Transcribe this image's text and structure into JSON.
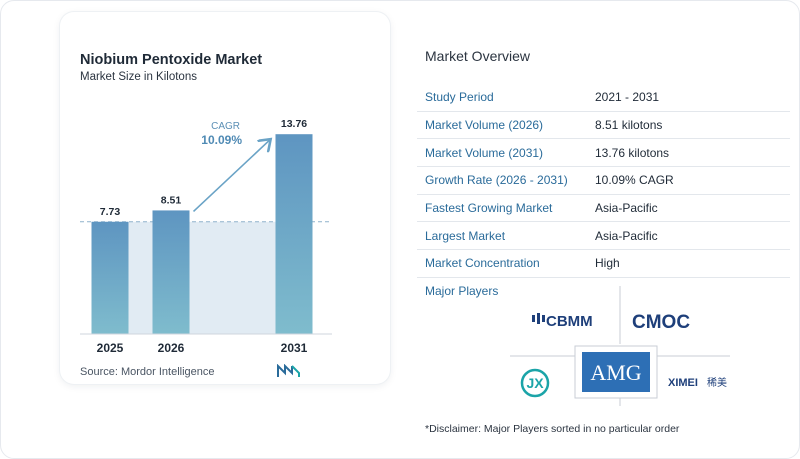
{
  "chart_data": {
    "type": "bar",
    "title": "Niobium Pentoxide Market",
    "subtitle": "Market Size in Kilotons",
    "categories": [
      "2025",
      "2026",
      "2031"
    ],
    "values": [
      7.73,
      8.51,
      13.76
    ],
    "value_labels": [
      "7.73",
      "8.51",
      "13.76"
    ],
    "ylim": [
      0,
      14.6
    ],
    "grid": false,
    "cagr_label": "CAGR",
    "cagr_value": "10.09%",
    "colors": {
      "bar_top": "#5e95c1",
      "bar_bottom": "#7fbccd",
      "baseline_fill": "#e1ebf3",
      "arrow": "#6aa3c6"
    }
  },
  "source": "Source:  Mordor Intelligence",
  "overview": {
    "title": "Market Overview",
    "rows": [
      {
        "key": "Study Period",
        "value": "2021 - 2031"
      },
      {
        "key": "Market Volume (2026)",
        "value": "8.51 kilotons"
      },
      {
        "key": "Market Volume (2031)",
        "value": "13.76 kilotons"
      },
      {
        "key": "Growth Rate (2026 - 2031)",
        "value": "10.09% CAGR"
      },
      {
        "key": "Fastest Growing Market",
        "value": "Asia-Pacific"
      },
      {
        "key": "Largest Market",
        "value": "Asia-Pacific"
      },
      {
        "key": "Market Concentration",
        "value": "High"
      }
    ]
  },
  "players": {
    "title": "Major Players",
    "logos": {
      "cbmm": "CBMM",
      "cmoc": "CMOC",
      "jx": "JX",
      "amg": "AMG",
      "ximei": "XIMEI",
      "ximei_cn": "稀美"
    },
    "colors": {
      "navy": "#1e3f7a",
      "amg": "#2d6fb5",
      "teal": "#1ba4a8"
    }
  },
  "disclaimer": "*Disclaimer: Major Players sorted in no particular order"
}
